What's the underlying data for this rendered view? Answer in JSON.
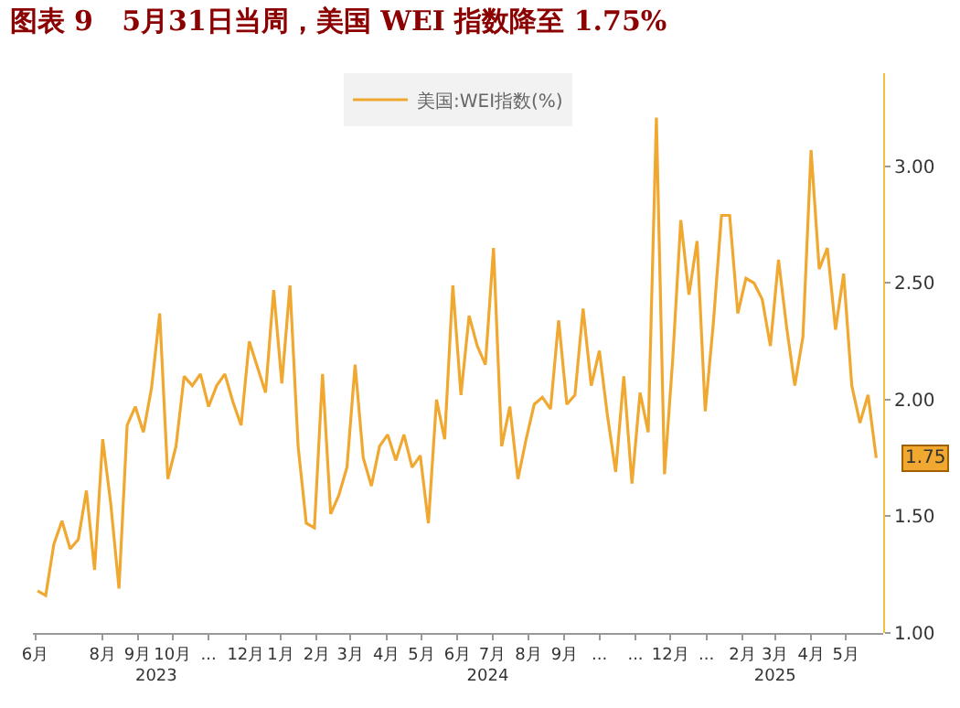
{
  "chart_data": {
    "type": "line",
    "title": "图表 9   5月31日当周，美国 WEI 指数降至 1.75%",
    "x": [
      "2023-06-10",
      "2023-06-17",
      "2023-06-24",
      "2023-07-01",
      "2023-07-08",
      "2023-07-15",
      "2023-07-22",
      "2023-07-29",
      "2023-08-05",
      "2023-08-12",
      "2023-08-19",
      "2023-08-26",
      "2023-09-02",
      "2023-09-09",
      "2023-09-16",
      "2023-09-23",
      "2023-09-30",
      "2023-10-07",
      "2023-10-14",
      "2023-10-21",
      "2023-10-28",
      "2023-11-04",
      "2023-11-11",
      "2023-11-18",
      "2023-11-25",
      "2023-12-02",
      "2023-12-09",
      "2023-12-16",
      "2023-12-23",
      "2023-12-30",
      "2024-01-06",
      "2024-01-13",
      "2024-01-20",
      "2024-01-27",
      "2024-02-03",
      "2024-02-10",
      "2024-02-17",
      "2024-02-24",
      "2024-03-02",
      "2024-03-09",
      "2024-03-16",
      "2024-03-23",
      "2024-03-30",
      "2024-04-06",
      "2024-04-13",
      "2024-04-20",
      "2024-04-27",
      "2024-05-04",
      "2024-05-11",
      "2024-05-18",
      "2024-05-25",
      "2024-06-01",
      "2024-06-08",
      "2024-06-15",
      "2024-06-22",
      "2024-06-29",
      "2024-07-06",
      "2024-07-13",
      "2024-07-20",
      "2024-07-27",
      "2024-08-03",
      "2024-08-10",
      "2024-08-17",
      "2024-08-24",
      "2024-08-31",
      "2024-09-07",
      "2024-09-14",
      "2024-09-21",
      "2024-09-28",
      "2024-10-05",
      "2024-10-12",
      "2024-10-19",
      "2024-10-26",
      "2024-11-02",
      "2024-11-09",
      "2024-11-16",
      "2024-11-23",
      "2024-11-30",
      "2024-12-07",
      "2024-12-14",
      "2024-12-21",
      "2024-12-28",
      "2025-01-04",
      "2025-01-11",
      "2025-01-18",
      "2025-01-25",
      "2025-02-01",
      "2025-02-08",
      "2025-02-15",
      "2025-02-22",
      "2025-03-01",
      "2025-03-08",
      "2025-03-15",
      "2025-03-22",
      "2025-03-29",
      "2025-04-05",
      "2025-04-12",
      "2025-04-19",
      "2025-04-26",
      "2025-05-03",
      "2025-05-10",
      "2025-05-17",
      "2025-05-24",
      "2025-05-31"
    ],
    "series": [
      {
        "name": "美国:WEI指数(%)",
        "color": "#f0a830",
        "values": [
          1.18,
          1.16,
          1.38,
          1.48,
          1.36,
          1.4,
          1.61,
          1.27,
          1.83,
          1.55,
          1.19,
          1.89,
          1.97,
          1.86,
          2.05,
          2.37,
          1.66,
          1.8,
          2.1,
          2.06,
          2.11,
          1.97,
          2.06,
          2.11,
          1.99,
          1.89,
          2.25,
          2.14,
          2.03,
          2.47,
          2.07,
          2.49,
          1.8,
          1.47,
          1.45,
          2.11,
          1.51,
          1.59,
          1.71,
          2.15,
          1.75,
          1.63,
          1.8,
          1.85,
          1.74,
          1.85,
          1.71,
          1.76,
          1.47,
          2.0,
          1.83,
          2.49,
          2.02,
          2.36,
          2.23,
          2.15,
          2.65,
          1.8,
          1.97,
          1.66,
          1.83,
          1.98,
          2.01,
          1.96,
          2.34,
          1.98,
          2.02,
          2.39,
          2.06,
          2.21,
          1.93,
          1.69,
          2.1,
          1.64,
          2.03,
          1.86,
          3.21,
          1.68,
          2.17,
          2.77,
          2.45,
          2.68,
          1.95,
          2.33,
          2.79,
          2.79,
          2.37,
          2.52,
          2.5,
          2.43,
          2.23,
          2.6,
          2.31,
          2.06,
          2.27,
          3.07,
          2.56,
          2.65,
          2.3,
          2.54,
          2.06,
          1.9,
          2.02,
          1.75
        ],
        "value_labels": [
          null,
          null,
          null,
          null,
          null,
          null,
          null,
          null,
          null,
          null,
          null,
          null,
          null,
          null,
          null,
          null,
          null,
          null,
          null,
          null,
          null,
          null,
          null,
          null,
          null,
          null,
          null,
          null,
          null,
          null,
          null,
          null,
          null,
          null,
          null,
          null,
          null,
          null,
          null,
          null,
          null,
          null,
          null,
          null,
          null,
          null,
          null,
          null,
          null,
          null,
          null,
          null,
          null,
          null,
          null,
          null,
          null,
          null,
          null,
          null,
          null,
          null,
          null,
          null,
          null,
          null,
          null,
          null,
          null,
          null,
          null,
          null,
          null,
          null,
          null,
          null,
          null,
          null,
          null,
          null,
          null,
          null,
          null,
          null,
          null,
          null,
          null,
          null,
          null,
          null,
          null,
          null,
          null,
          null,
          null,
          null,
          null,
          null,
          null,
          null,
          null,
          null,
          null,
          "1.75"
        ]
      }
    ],
    "xlim": [
      "2023-06-06",
      "2025-06-06"
    ],
    "xticks": [
      {
        "value": "2023-06-08",
        "label": "6月"
      },
      {
        "value": "2023-08-05",
        "label": "8月"
      },
      {
        "value": "2023-09-04",
        "label": "9月"
      },
      {
        "value": "2023-10-04",
        "label": "10月"
      },
      {
        "value": "2023-11-04",
        "label": "..."
      },
      {
        "value": "2023-12-06",
        "label": "12月"
      },
      {
        "value": "2024-01-05",
        "label": "1月"
      },
      {
        "value": "2024-02-05",
        "label": "2月"
      },
      {
        "value": "2024-03-05",
        "label": "3月"
      },
      {
        "value": "2024-04-05",
        "label": "4月"
      },
      {
        "value": "2024-05-05",
        "label": "5月"
      },
      {
        "value": "2024-06-05",
        "label": "6月"
      },
      {
        "value": "2024-07-05",
        "label": "7月"
      },
      {
        "value": "2024-08-05",
        "label": "8月"
      },
      {
        "value": "2024-09-05",
        "label": "9月"
      },
      {
        "value": "2024-10-05",
        "label": "..."
      },
      {
        "value": "2024-11-05",
        "label": "..."
      },
      {
        "value": "2024-12-05",
        "label": "12月"
      },
      {
        "value": "2025-01-05",
        "label": "..."
      },
      {
        "value": "2025-02-05",
        "label": "2月"
      },
      {
        "value": "2025-03-05",
        "label": "3月"
      },
      {
        "value": "2025-04-05",
        "label": "4月"
      },
      {
        "value": "2025-05-05",
        "label": "5月"
      }
    ],
    "ylim": [
      1.0,
      3.4
    ],
    "yticks": [
      {
        "value": 1.0,
        "label": "1.00"
      },
      {
        "value": 1.5,
        "label": "1.50"
      },
      {
        "value": 2.0,
        "label": "2.00"
      },
      {
        "value": 2.5,
        "label": "2.50"
      },
      {
        "value": 3.0,
        "label": "3.00"
      }
    ],
    "x2lim": [
      "2023-06-06",
      "2025-06-06"
    ],
    "x2ticks": [
      {
        "value": "2023-09-20",
        "label": "2023"
      },
      {
        "value": "2024-07-01",
        "label": "2024"
      },
      {
        "value": "2025-03-05",
        "label": "2025"
      }
    ],
    "legend": "top",
    "marker": "none",
    "line_style": "solid"
  }
}
